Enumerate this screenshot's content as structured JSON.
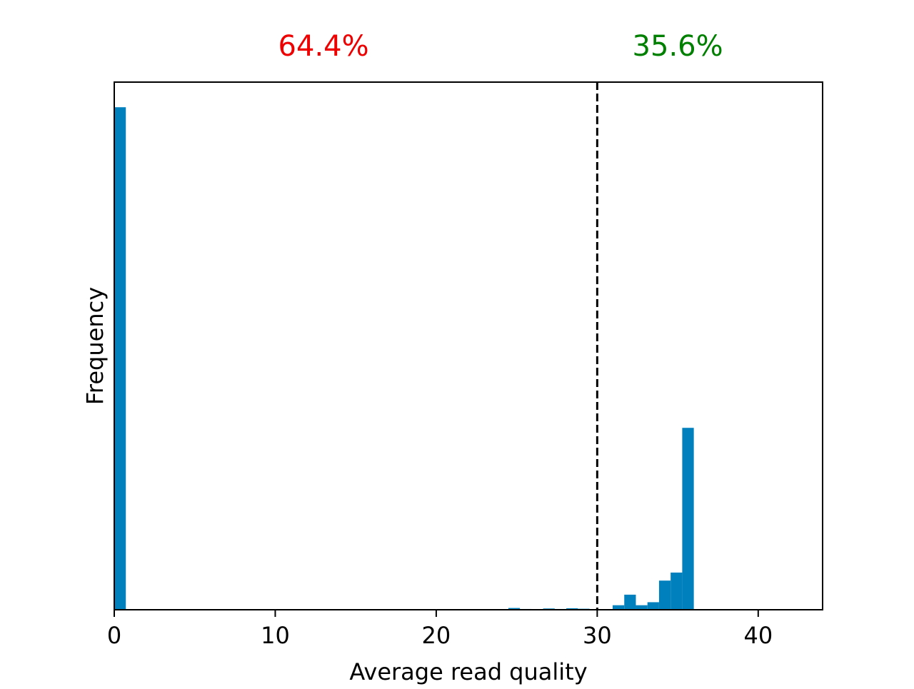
{
  "chart_data": {
    "type": "bar",
    "title": "",
    "xlabel": "Average read quality",
    "ylabel": "Frequency",
    "xlim": [
      0,
      44
    ],
    "ylim": [
      0,
      1.05
    ],
    "y_ticks_shown": false,
    "grid": false,
    "legend": "none",
    "x_ticks": [
      0,
      10,
      20,
      30,
      40
    ],
    "bin_width": 0.72,
    "bar_color": "#0080bd",
    "bins": [
      {
        "x": 0.0,
        "value": 1.0
      },
      {
        "x": 24.48,
        "value": 0.0035
      },
      {
        "x": 25.2,
        "value": 0.0015
      },
      {
        "x": 26.64,
        "value": 0.0025
      },
      {
        "x": 27.36,
        "value": 0.0015
      },
      {
        "x": 28.08,
        "value": 0.003
      },
      {
        "x": 28.8,
        "value": 0.002
      },
      {
        "x": 30.96,
        "value": 0.009
      },
      {
        "x": 31.68,
        "value": 0.03
      },
      {
        "x": 32.4,
        "value": 0.009
      },
      {
        "x": 33.12,
        "value": 0.015
      },
      {
        "x": 33.84,
        "value": 0.058
      },
      {
        "x": 34.56,
        "value": 0.074
      },
      {
        "x": 35.28,
        "value": 0.362
      }
    ],
    "threshold": {
      "x": 30,
      "style": "dashed",
      "color": "#000000"
    },
    "annotations": [
      {
        "text": "64.4%",
        "x": 13,
        "color": "#ee0000"
      },
      {
        "text": "35.6%",
        "x": 35,
        "color": "#008000"
      }
    ]
  }
}
